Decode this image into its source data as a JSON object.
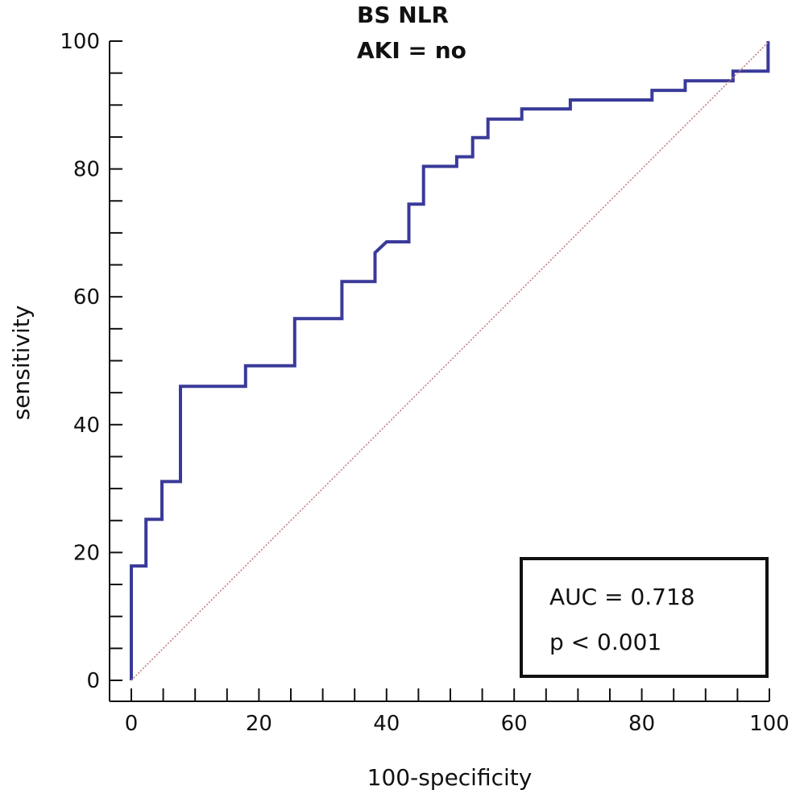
{
  "chart_data": {
    "type": "line",
    "title_lines": [
      "BS NLR",
      "AKI = no"
    ],
    "xlabel": "100-specificity",
    "ylabel": "sensitivity",
    "xlim": [
      0,
      100
    ],
    "ylim": [
      0,
      100
    ],
    "x_ticks": [
      "0",
      "20",
      "40",
      "60",
      "80",
      "100"
    ],
    "y_ticks": [
      "0",
      "20",
      "40",
      "60",
      "80",
      "100"
    ],
    "grid": false,
    "series": [
      {
        "color": "#3a3a9a",
        "style": "step",
        "x": [
          0,
          0,
          2.3,
          2.3,
          4.8,
          4.8,
          7.7,
          7.7,
          17.9,
          17.9,
          25.6,
          25.6,
          33.0,
          33.0,
          38.2,
          38.2,
          40.0,
          43.5,
          43.5,
          45.8,
          45.8,
          51.0,
          51.0,
          53.5,
          53.5,
          55.9,
          55.9,
          61.2,
          61.2,
          68.8,
          68.8,
          81.6,
          81.6,
          86.8,
          86.8,
          94.3,
          94.3,
          99.8,
          99.8
        ],
        "y": [
          0,
          17.9,
          17.9,
          25.2,
          25.2,
          31.1,
          31.1,
          46.0,
          46.0,
          49.2,
          49.2,
          56.6,
          56.6,
          62.4,
          62.4,
          66.9,
          68.6,
          68.6,
          74.5,
          74.5,
          80.4,
          80.4,
          81.9,
          81.9,
          84.9,
          84.9,
          87.8,
          87.8,
          89.4,
          89.4,
          90.8,
          90.8,
          92.3,
          92.3,
          93.8,
          93.8,
          95.3,
          95.3,
          100
        ]
      },
      {
        "color": "#c08080",
        "style": "dotted",
        "x": [
          0,
          100
        ],
        "y": [
          0,
          100
        ]
      }
    ],
    "annotations": [
      "AUC = 0.718",
      "p < 0.001"
    ]
  }
}
